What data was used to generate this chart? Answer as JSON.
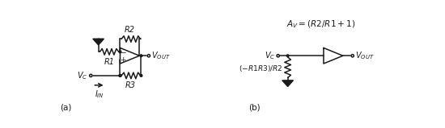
{
  "fig_width": 5.5,
  "fig_height": 1.59,
  "dpi": 100,
  "bg_color": "#ffffff",
  "line_color": "#1a1a1a",
  "lw": 1.1,
  "dot_r": 0.032,
  "open_dot_r": 0.038,
  "res_amp": 0.09,
  "res_n": 4,
  "xlim": [
    0,
    10
  ],
  "ylim": [
    0,
    2.88
  ]
}
